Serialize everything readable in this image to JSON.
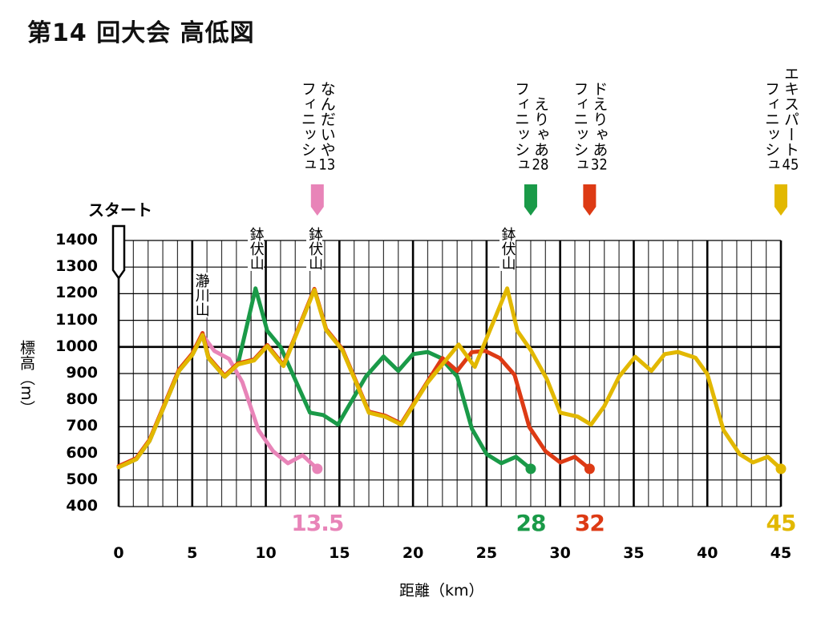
{
  "chart_data": {
    "type": "line",
    "title": "第14 回大会 高低図",
    "xlabel": "距離（km）",
    "ylabel": "標高（m）",
    "xlim": [
      0,
      45
    ],
    "ylim": [
      400,
      1400
    ],
    "xticks": [
      0,
      5,
      10,
      15,
      20,
      25,
      30,
      35,
      40,
      45
    ],
    "yticks": [
      400,
      500,
      600,
      700,
      800,
      900,
      1000,
      1100,
      1200,
      1300,
      1400
    ],
    "grid": true,
    "start_label": "スタート",
    "mountains": [
      {
        "name": "瀞川山",
        "km": 5.6
      },
      {
        "name": "鉢伏山",
        "km": 9.3
      },
      {
        "name": "鉢伏山",
        "km": 13.3
      },
      {
        "name": "鉢伏山",
        "km": 26.4
      }
    ],
    "series": [
      {
        "name": "なんだいや13",
        "finish": "フィニッシュ",
        "number": "13",
        "distance_label": "13.5",
        "color": "#e884b8",
        "x": [
          0,
          1.2,
          2.1,
          4.1,
          5,
          5.7,
          6.5,
          7.5,
          8.4,
          9.5,
          10.5,
          11.5,
          12.5,
          13.5
        ],
        "y": [
          548,
          578,
          647,
          910,
          970,
          1045,
          985,
          955,
          868,
          687,
          608,
          563,
          593,
          542
        ]
      },
      {
        "name": "えりゃあ28",
        "finish": "フィニッシュ",
        "number": "28",
        "distance_label": "28",
        "color": "#1a9a48",
        "x": [
          0,
          1.2,
          2.1,
          4.1,
          5,
          5.7,
          6.1,
          7.2,
          8.1,
          9.3,
          10.1,
          11,
          13,
          13.9,
          14.9,
          16.8,
          18,
          19,
          20,
          21,
          21.9,
          23,
          24,
          25,
          26,
          27,
          28
        ],
        "y": [
          548,
          578,
          647,
          910,
          970,
          1045,
          958,
          888,
          934,
          1220,
          1060,
          1000,
          753,
          744,
          708,
          889,
          964,
          910,
          973,
          981,
          958,
          889,
          693,
          597,
          563,
          587,
          542
        ]
      },
      {
        "name": "ドえりゃあ32",
        "finish": "フィニッシュ",
        "number": "32",
        "distance_label": "32",
        "color": "#dd3a14",
        "x": [
          0,
          1.2,
          2.1,
          4.1,
          5,
          5.7,
          6.1,
          7.2,
          8.1,
          9.2,
          10.1,
          11.2,
          13.3,
          14.1,
          15.2,
          17,
          18.1,
          19.2,
          21,
          22,
          23,
          24,
          24.9,
          25.9,
          26.9,
          27.9,
          29,
          30,
          31,
          32
        ],
        "y": [
          552,
          582,
          651,
          915,
          975,
          1052,
          962,
          892,
          938,
          953,
          1007,
          932,
          1218,
          1067,
          992,
          757,
          742,
          712,
          871,
          958,
          910,
          980,
          985,
          958,
          895,
          699,
          608,
          566,
          587,
          542
        ]
      },
      {
        "name": "エキスパート45",
        "finish": "フィニッシュ",
        "number": "45",
        "distance_label": "45",
        "color": "#e2b800",
        "x": [
          0,
          1.2,
          2.1,
          4.1,
          5,
          5.7,
          6.1,
          7.2,
          8.1,
          9.2,
          10.1,
          11.2,
          13.3,
          14.1,
          15.2,
          17,
          18.1,
          19.2,
          21,
          23.1,
          24.2,
          26.4,
          27.1,
          28,
          29.1,
          30,
          31.2,
          32.1,
          33,
          34,
          35.1,
          36.2,
          37.1,
          38,
          39.2,
          40,
          41.1,
          42.2,
          43.1,
          44.1,
          45
        ],
        "y": [
          548,
          578,
          647,
          910,
          970,
          1045,
          958,
          888,
          934,
          949,
          1003,
          928,
          1214,
          1063,
          988,
          753,
          738,
          708,
          867,
          1009,
          925,
          1220,
          1060,
          988,
          879,
          753,
          738,
          708,
          777,
          888,
          963,
          910,
          973,
          981,
          959,
          898,
          687,
          597,
          566,
          587,
          542
        ]
      }
    ]
  }
}
